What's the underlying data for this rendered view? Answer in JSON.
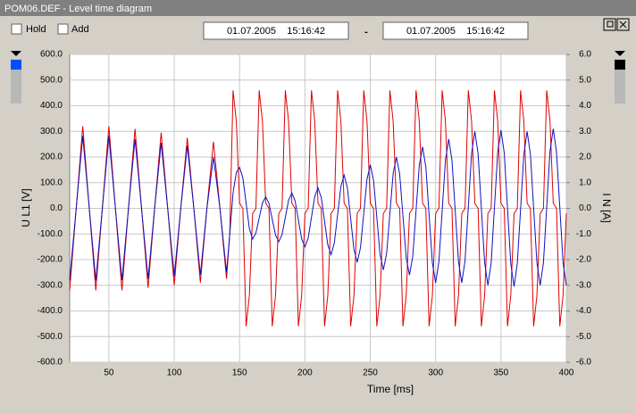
{
  "window": {
    "title": "POM06.DEF - Level time diagram",
    "hold": "Hold",
    "add": "Add",
    "start": "01.07.2005    15:16:42",
    "separator": "-",
    "end": "01.07.2005    15:16:42"
  },
  "chart_data": {
    "type": "line",
    "xlabel": "Time [ms]",
    "ylabel": "U L1 [V]",
    "y2label": "I N [A]",
    "xlim": [
      20,
      400
    ],
    "xticks": [
      50,
      100,
      150,
      200,
      250,
      300,
      350,
      400
    ],
    "ylim": [
      -600,
      600
    ],
    "yticks": [
      {
        "value": -600,
        "label": "-600.0"
      },
      {
        "value": -500,
        "label": "-500.0"
      },
      {
        "value": -400,
        "label": "-400.0"
      },
      {
        "value": -300,
        "label": "-300.0"
      },
      {
        "value": -200,
        "label": "-200.0"
      },
      {
        "value": -100,
        "label": "-100.0"
      },
      {
        "value": 0,
        "label": "0.0"
      },
      {
        "value": 100,
        "label": "100.0"
      },
      {
        "value": 200,
        "label": "200.0"
      },
      {
        "value": 300,
        "label": "300.0"
      },
      {
        "value": 400,
        "label": "400.0"
      },
      {
        "value": 500,
        "label": "500.0"
      },
      {
        "value": 600,
        "label": "600.0"
      }
    ],
    "y2lim": [
      -6,
      6
    ],
    "y2ticks": [
      {
        "value": -6,
        "label": "-6.0"
      },
      {
        "value": -5,
        "label": "-5.0"
      },
      {
        "value": -4,
        "label": "-4.0"
      },
      {
        "value": -3,
        "label": "-3.0"
      },
      {
        "value": -2,
        "label": "-2.0"
      },
      {
        "value": -1,
        "label": "-1.0"
      },
      {
        "value": 0,
        "label": "0.0"
      },
      {
        "value": 1,
        "label": "1.0"
      },
      {
        "value": 2,
        "label": "2.0"
      },
      {
        "value": 3,
        "label": "3.0"
      },
      {
        "value": 4,
        "label": "4.0"
      },
      {
        "value": 5,
        "label": "5.0"
      },
      {
        "value": 6,
        "label": "6.0"
      }
    ],
    "grid": true,
    "x": [
      20,
      25,
      30,
      35,
      40,
      45,
      50,
      55,
      60,
      65,
      70,
      75,
      80,
      85,
      90,
      95,
      100,
      105,
      110,
      115,
      120,
      125,
      130,
      135,
      140,
      142.5,
      145,
      147.5,
      150,
      152.5,
      155,
      157.5,
      160,
      162.5,
      165,
      167.5,
      170,
      172.5,
      175,
      177.5,
      180,
      182.5,
      185,
      187.5,
      190,
      192.5,
      195,
      197.5,
      200,
      202.5,
      205,
      207.5,
      210,
      212.5,
      215,
      217.5,
      220,
      222.5,
      225,
      227.5,
      230,
      232.5,
      235,
      237.5,
      240,
      242.5,
      245,
      247.5,
      250,
      252.5,
      255,
      257.5,
      260,
      262.5,
      265,
      267.5,
      270,
      272.5,
      275,
      277.5,
      280,
      282.5,
      285,
      287.5,
      290,
      292.5,
      295,
      297.5,
      300,
      302.5,
      305,
      307.5,
      310,
      312.5,
      315,
      317.5,
      320,
      322.5,
      325,
      327.5,
      330,
      332.5,
      335,
      337.5,
      340,
      342.5,
      345,
      347.5,
      350,
      352.5,
      355,
      357.5,
      360,
      362.5,
      365,
      367.5,
      370,
      372.5,
      375,
      377.5,
      380,
      382.5,
      385,
      387.5,
      390,
      392.5,
      395,
      397.5,
      400
    ],
    "series": [
      {
        "color": "#e00000",
        "axis": "y2",
        "values": [
          -3.2,
          0,
          3.2,
          0,
          -3.2,
          0,
          3.2,
          0,
          -3.2,
          0,
          3.1,
          0,
          -3.1,
          0,
          2.95,
          0,
          -3,
          0,
          2.75,
          0,
          -2.9,
          0,
          2.6,
          0,
          -2.75,
          -1,
          4.6,
          3.4,
          0.2,
          0,
          -4.6,
          -3.4,
          -0.2,
          0,
          4.6,
          3.4,
          0.2,
          0,
          -4.6,
          -3.4,
          -0.2,
          0,
          4.6,
          3.4,
          0.2,
          0,
          -4.6,
          -3.4,
          -0.2,
          0,
          4.6,
          3.4,
          0.2,
          0,
          -4.6,
          -3.4,
          -0.2,
          0,
          4.6,
          3.4,
          0.2,
          0,
          -4.6,
          -3.4,
          -0.2,
          0,
          4.6,
          3.4,
          0.2,
          0,
          -4.6,
          -3.4,
          -0.2,
          0,
          4.6,
          3.4,
          0.2,
          0,
          -4.6,
          -3.4,
          -0.2,
          0,
          4.6,
          3.4,
          0.2,
          0,
          -4.6,
          -3.4,
          -0.2,
          0,
          4.6,
          3.4,
          0.2,
          0,
          -4.6,
          -3.4,
          -0.2,
          0,
          4.6,
          3.4,
          0.2,
          0,
          -4.6,
          -3.4,
          -0.2,
          0,
          4.6,
          3.4,
          0.2,
          0,
          -4.6,
          -3.4,
          -0.2,
          0,
          4.6,
          3.4,
          0.2,
          0,
          -4.6,
          -3.4,
          -0.2,
          0,
          4.6,
          3.4,
          0.2,
          0,
          -4.6,
          -3.4,
          -0.2
        ]
      },
      {
        "color": "#1010c0",
        "values": [
          -280,
          0,
          282,
          0,
          -282,
          0,
          282,
          0,
          -280,
          0,
          270,
          0,
          -275,
          0,
          255,
          0,
          -265,
          0,
          245,
          0,
          -260,
          0,
          200,
          0,
          -250,
          -100,
          60,
          140,
          160,
          119,
          20,
          -79,
          -120,
          -96,
          -38,
          21,
          45,
          19,
          -43,
          -104,
          -130,
          -102,
          -35,
          32,
          60,
          29,
          -45,
          -119,
          -150,
          -116,
          -35,
          46,
          80,
          42,
          -50,
          -142,
          -180,
          -135,
          -25,
          85,
          130,
          80,
          -40,
          -160,
          -210,
          -154,
          -20,
          114,
          170,
          110,
          -35,
          -180,
          -240,
          -176,
          -20,
          136,
          200,
          133,
          -30,
          -193,
          -260,
          -187,
          -10,
          167,
          240,
          162,
          -25,
          -212,
          -290,
          -208,
          -10,
          188,
          270,
          188,
          -10,
          -208,
          -290,
          -204,
          5,
          214,
          300,
          212,
          0,
          -212,
          -300,
          -212,
          3,
          218,
          305,
          216,
          0,
          -216,
          -305,
          -214,
          -3,
          210,
          300,
          212,
          0,
          -212,
          -300,
          -211,
          5,
          222,
          310,
          218,
          5,
          -211,
          -300
        ]
      }
    ]
  }
}
